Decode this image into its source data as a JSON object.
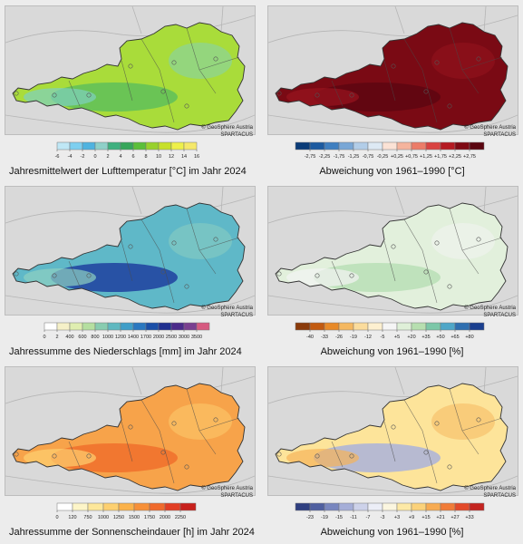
{
  "credit": {
    "line1": "© GeoSphere Austria",
    "line2": "SPARTACUS"
  },
  "panels": [
    {
      "id": "temp-abs",
      "caption": "Jahresmittelwert der Lufttemperatur [°C] im Jahr 2024",
      "legend_ticks": [
        "-6",
        "-4",
        "-2",
        "0",
        "2",
        "4",
        "6",
        "8",
        "10",
        "12",
        "14",
        "16"
      ],
      "legend_colors": [
        "#bfe7f5",
        "#7dcff0",
        "#4fb3e0",
        "#8fd0c8",
        "#3fb07f",
        "#37a65a",
        "#5bbf3a",
        "#98d12d",
        "#c7e02a",
        "#eef04a",
        "#f5e86a"
      ],
      "fill": "#a9dc3a",
      "fill2": "#5fbf5a",
      "fill3": "#7fd0c0"
    },
    {
      "id": "temp-dev",
      "caption": "Abweichung von 1961–1990 [°C]",
      "legend_ticks": [
        "-2,75",
        "-2,25",
        "-1,75",
        "-1,25",
        "-0,75",
        "-0,25",
        "+0,25",
        "+0,75",
        "+1,25",
        "+1,75",
        "+2,25",
        "+2,75"
      ],
      "legend_colors": [
        "#0b3c78",
        "#1c5aa0",
        "#3f7fc0",
        "#79a7d6",
        "#b2cde8",
        "#dde9f4",
        "#fbe2d5",
        "#f5b49d",
        "#ec7c68",
        "#d94341",
        "#b51a22",
        "#7f0a14",
        "#5a0510"
      ],
      "fill": "#7a0a14",
      "fill2": "#5e0610",
      "fill3": "#98141e"
    },
    {
      "id": "precip-abs",
      "caption": "Jahressumme des Niederschlags [mm] im Jahr 2024",
      "legend_ticks": [
        "0",
        "2",
        "400",
        "600",
        "800",
        "1000",
        "1200",
        "1400",
        "1700",
        "2000",
        "2500",
        "3000",
        "3500"
      ],
      "legend_colors": [
        "#ffffff",
        "#f5f0c8",
        "#dfeeb0",
        "#b5dfa0",
        "#88ccb0",
        "#5fb8c0",
        "#3f9ec8",
        "#2a78c0",
        "#1a4fa8",
        "#1f2f8f",
        "#4a2a8a",
        "#7a3f90",
        "#d65a80"
      ],
      "fill": "#5fb8c8",
      "fill2": "#1f3f9f",
      "fill3": "#8fd0c0"
    },
    {
      "id": "precip-dev",
      "caption": "Abweichung von 1961–1990 [%]",
      "legend_ticks": [
        "-40",
        "-33",
        "-26",
        "-19",
        "-12",
        "-5",
        "+5",
        "+20",
        "+35",
        "+50",
        "+65",
        "+80"
      ],
      "legend_colors": [
        "#8a3a0a",
        "#c25a10",
        "#e88a28",
        "#f5b860",
        "#fbdc9c",
        "#fdf0d0",
        "#f5f5f5",
        "#dff0d8",
        "#b7dfb0",
        "#7cc7a8",
        "#4fa7c8",
        "#2f6fb0",
        "#1a3f8f"
      ],
      "fill": "#e2f0dc",
      "fill2": "#b9dfb6",
      "fill3": "#f3f3f3"
    },
    {
      "id": "sun-abs",
      "caption": "Jahressumme der Sonnenscheindauer [h] im Jahr 2024",
      "legend_ticks": [
        "0",
        "120",
        "750",
        "1000",
        "1250",
        "1500",
        "1750",
        "2000",
        "2250"
      ],
      "legend_colors": [
        "#ffffff",
        "#fdf5c8",
        "#fde79a",
        "#fdd070",
        "#fbb24a",
        "#f79038",
        "#f06a2c",
        "#e23e24",
        "#c8201c"
      ],
      "fill": "#f7a34a",
      "fill2": "#f0702c",
      "fill3": "#fdd070"
    },
    {
      "id": "sun-dev",
      "caption": "Abweichung von 1961–1990 [%]",
      "legend_ticks": [
        "-23",
        "-19",
        "-15",
        "-11",
        "-7",
        "-3",
        "+3",
        "+9",
        "+15",
        "+21",
        "+27",
        "+33"
      ],
      "legend_colors": [
        "#2f3f80",
        "#4f5fa0",
        "#7886bf",
        "#a5aed8",
        "#cdd2ea",
        "#eceef7",
        "#fbf6e0",
        "#fde9a6",
        "#fbd27a",
        "#f7ab52",
        "#f17c38",
        "#e34a2a",
        "#c42420"
      ],
      "fill": "#fde49a",
      "fill2": "#aab3da",
      "fill3": "#f5b45a"
    }
  ]
}
